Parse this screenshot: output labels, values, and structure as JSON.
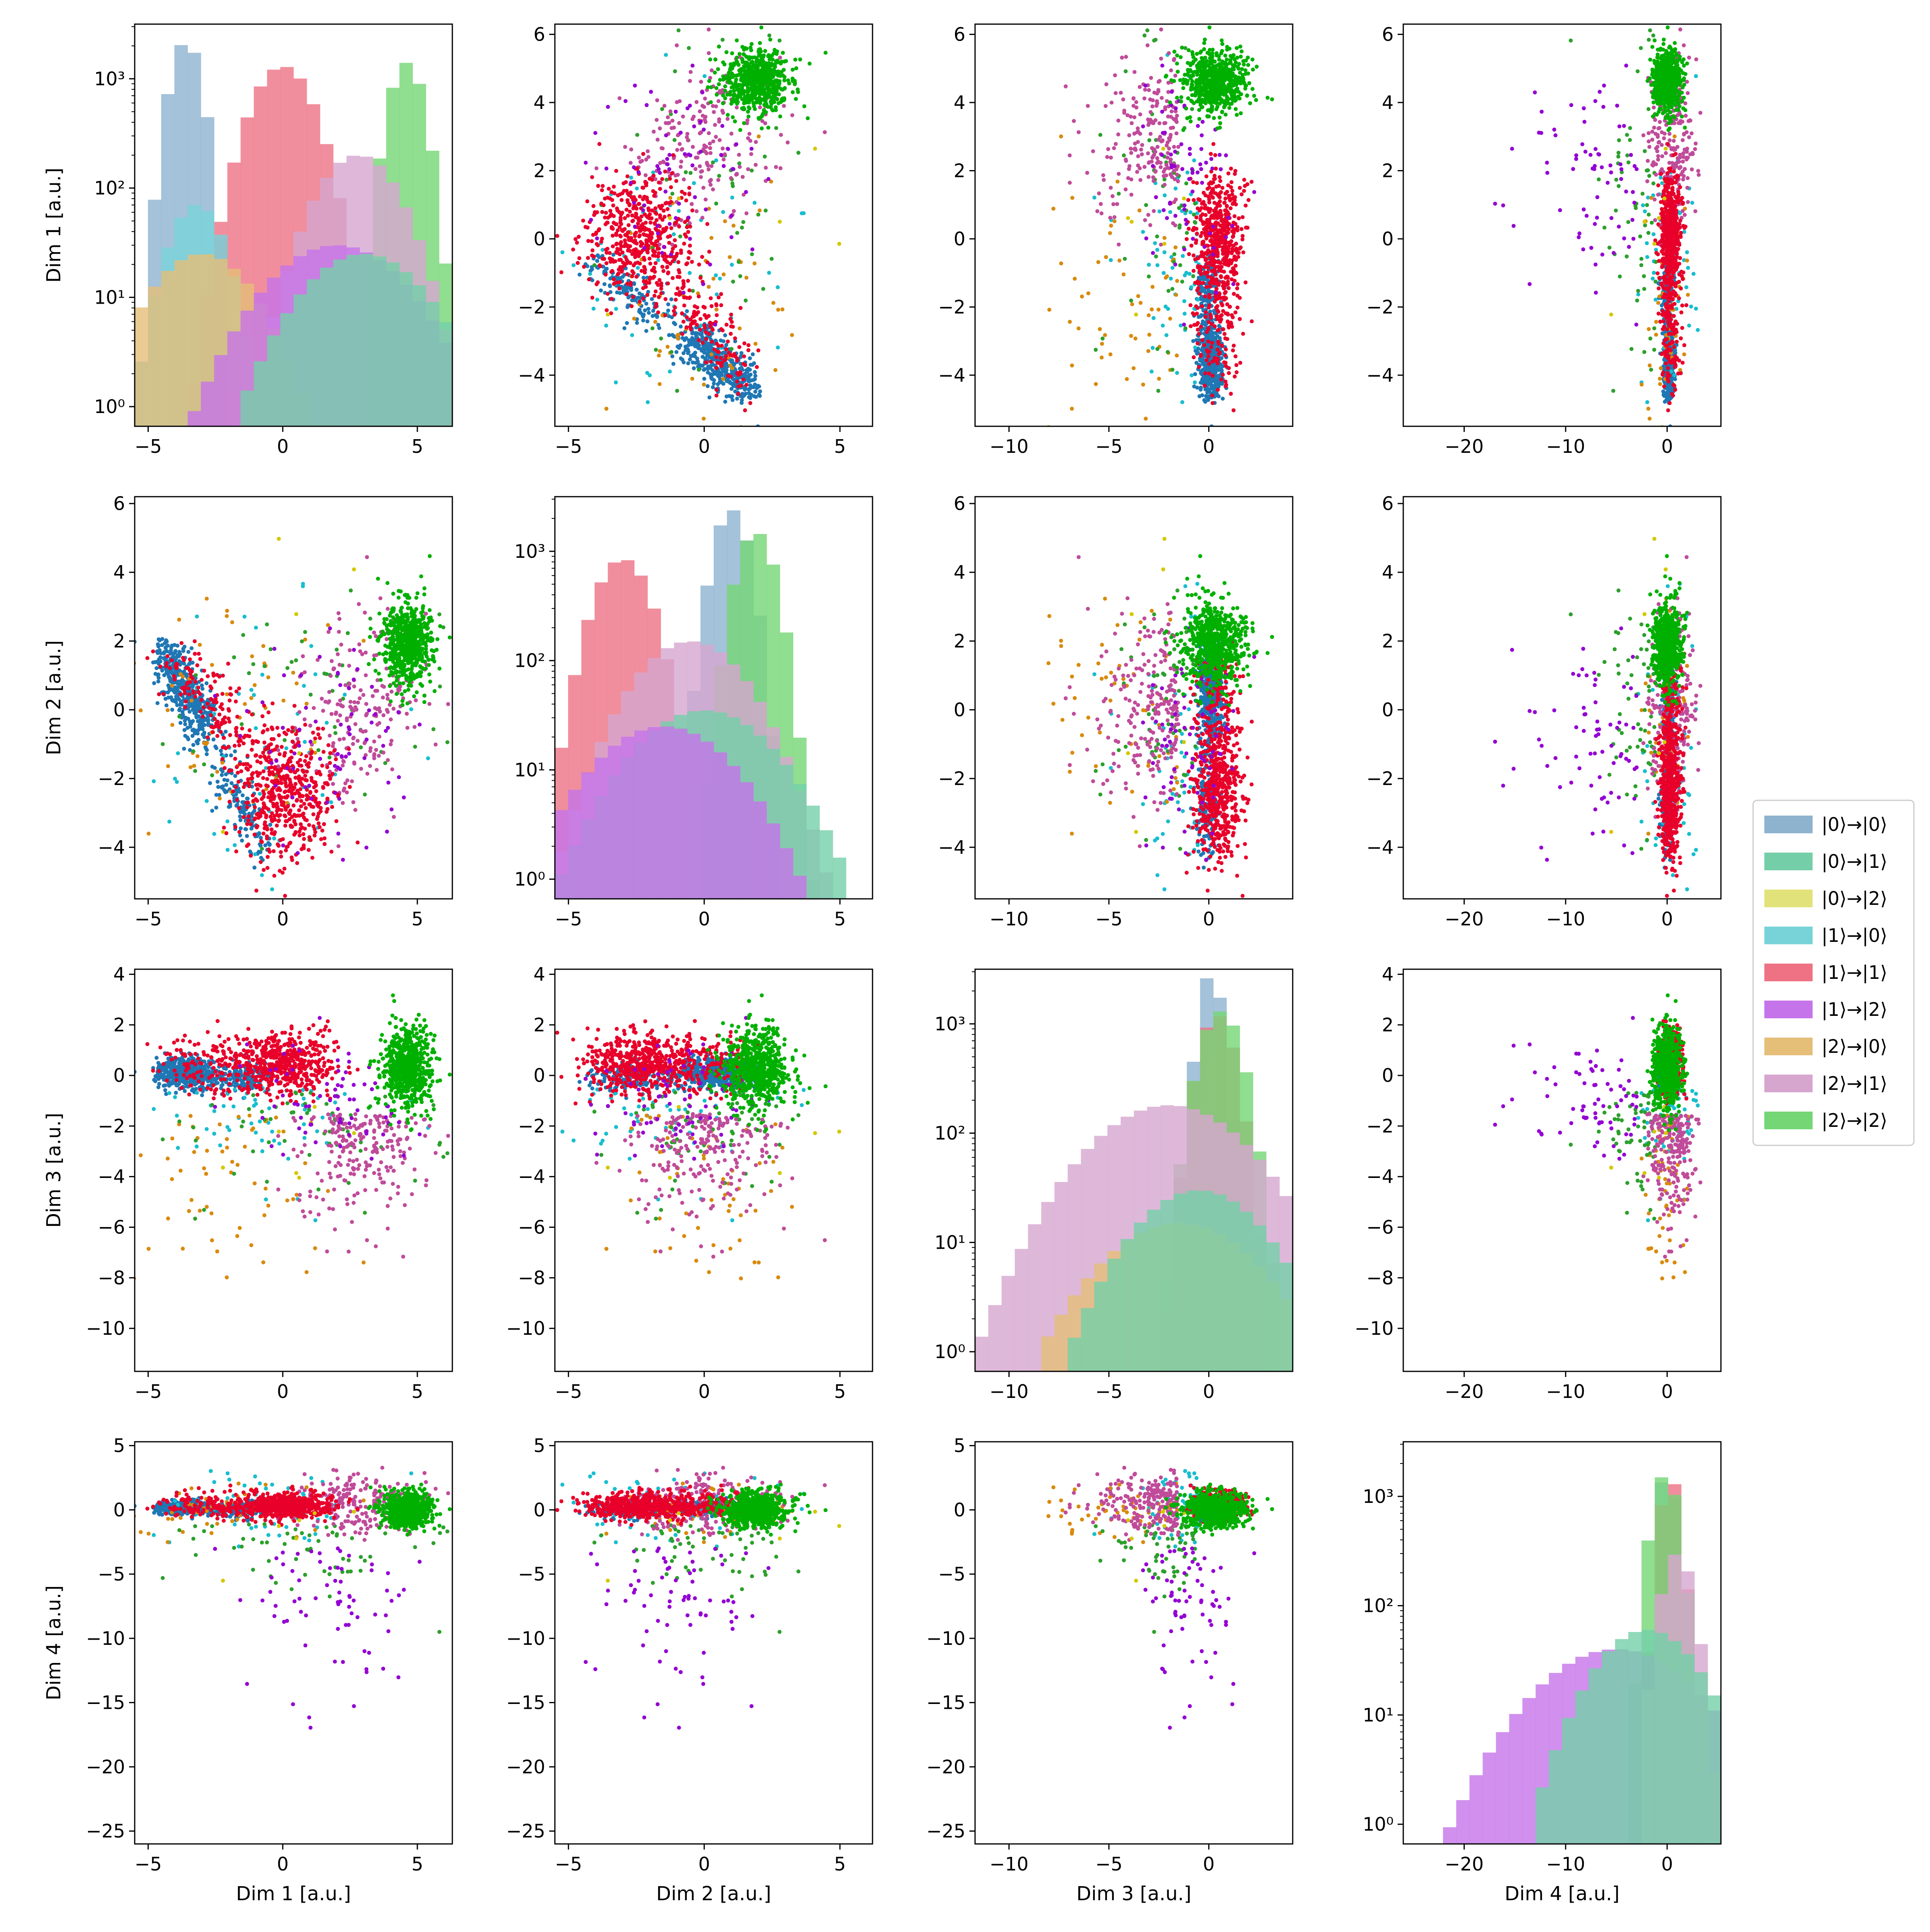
{
  "chart_data": {
    "type": "scatter-matrix",
    "dims": [
      "Dim 1 [a.u.]",
      "Dim 2 [a.u.]",
      "Dim 3 [a.u.]",
      "Dim 4 [a.u.]"
    ],
    "legend_placement": "center-right",
    "categories": [
      {
        "name": "|0⟩→|0⟩",
        "hist_color": "#8db3cf",
        "point_color": "#1f77b4"
      },
      {
        "name": "|0⟩→|1⟩",
        "hist_color": "#74cfa9",
        "point_color": "#2ca02c"
      },
      {
        "name": "|0⟩→|2⟩",
        "hist_color": "#e2e27a",
        "point_color": "#d4c800"
      },
      {
        "name": "|1⟩→|0⟩",
        "hist_color": "#78d3d9",
        "point_color": "#17becf"
      },
      {
        "name": "|1⟩→|1⟩",
        "hist_color": "#ee7284",
        "point_color": "#e8002a"
      },
      {
        "name": "|1⟩→|2⟩",
        "hist_color": "#c674ea",
        "point_color": "#9400d3"
      },
      {
        "name": "|2⟩→|0⟩",
        "hist_color": "#e5be78",
        "point_color": "#d98a0d"
      },
      {
        "name": "|2⟩→|1⟩",
        "hist_color": "#d6a6cf",
        "point_color": "#c04b9a"
      },
      {
        "name": "|2⟩→|2⟩",
        "hist_color": "#74d674",
        "point_color": "#00b000"
      }
    ],
    "axes": {
      "Dim 1": {
        "range": [
          -5.5,
          6.3
        ],
        "ticks": [
          -5,
          0,
          5
        ]
      },
      "Dim 2": {
        "range": [
          -5.5,
          6.2
        ],
        "ticks": [
          -5,
          0,
          5
        ]
      },
      "Dim 3": {
        "range": [
          -11.7,
          4.2
        ],
        "ticks": [
          -10,
          -5,
          0
        ],
        "y_ticks": [
          -10,
          -8,
          -6,
          -4,
          -2,
          0,
          2,
          4
        ]
      },
      "Dim 4": {
        "range": [
          -26,
          5.3
        ],
        "ticks": [
          -20,
          -10,
          0
        ],
        "y_ticks": [
          -25,
          -20,
          -15,
          -10,
          -5,
          0,
          5
        ]
      }
    },
    "row_y_axes": {
      "Dim 1": {
        "range": [
          -5.5,
          6.3
        ],
        "ticks": [
          -4,
          -2,
          0,
          2,
          4,
          6
        ]
      },
      "Dim 2": {
        "range": [
          -5.5,
          6.2
        ],
        "ticks": [
          -4,
          -2,
          0,
          2,
          4,
          6
        ]
      },
      "Dim 3": {
        "range": [
          -11.7,
          4.2
        ],
        "ticks": [
          -10,
          -8,
          -6,
          -4,
          -2,
          0,
          2,
          4
        ]
      },
      "Dim 4": {
        "range": [
          -26,
          5.3
        ],
        "ticks": [
          -25,
          -20,
          -15,
          -10,
          -5,
          0,
          5
        ]
      }
    },
    "histogram_y": {
      "scale": "log",
      "ticks": [
        "10⁰",
        "10¹",
        "10²",
        "10³"
      ]
    },
    "cluster_centers": {
      "|0⟩→|0⟩": [
        -3.8,
        0.8,
        0.2,
        0.1
      ],
      "|1⟩→|1⟩": [
        0.2,
        -3.0,
        0.6,
        0.3
      ],
      "|2⟩→|2⟩": [
        4.6,
        1.8,
        0.3,
        0.0
      ]
    },
    "histograms": [
      {
        "dim": "Dim 1",
        "peaks": [
          {
            "series": "|0⟩→|0⟩",
            "center": -3.6,
            "width": 0.45,
            "peak": 2200
          },
          {
            "series": "|1⟩→|1⟩",
            "center": 0.0,
            "width": 0.9,
            "peak": 1300
          },
          {
            "series": "|2⟩→|2⟩",
            "center": 4.6,
            "width": 0.5,
            "peak": 1400
          },
          {
            "series": "|2⟩→|1⟩",
            "center": 2.8,
            "width": 1.2,
            "peak": 200
          },
          {
            "series": "|1⟩→|0⟩",
            "center": -3.2,
            "width": 0.8,
            "peak": 70
          },
          {
            "series": "|2⟩→|0⟩",
            "center": -3.0,
            "width": 1.5,
            "peak": 25
          },
          {
            "series": "|1⟩→|2⟩",
            "center": 2.0,
            "width": 2.0,
            "peak": 30
          },
          {
            "series": "|0⟩→|1⟩",
            "center": 3.0,
            "width": 1.8,
            "peak": 25
          }
        ]
      },
      {
        "dim": "Dim 2",
        "peaks": [
          {
            "series": "|1⟩→|1⟩",
            "center": -3.0,
            "width": 0.8,
            "peak": 850
          },
          {
            "series": "|0⟩→|0⟩",
            "center": 1.0,
            "width": 0.5,
            "peak": 2400
          },
          {
            "series": "|2⟩→|2⟩",
            "center": 1.9,
            "width": 0.55,
            "peak": 1500
          },
          {
            "series": "|2⟩→|1⟩",
            "center": -0.5,
            "width": 1.6,
            "peak": 150
          },
          {
            "series": "|0⟩→|1⟩",
            "center": 0.0,
            "width": 2.0,
            "peak": 35
          },
          {
            "series": "|1⟩→|2⟩",
            "center": -1.5,
            "width": 2.0,
            "peak": 25
          }
        ]
      },
      {
        "dim": "Dim 3",
        "peaks": [
          {
            "series": "|0⟩→|0⟩",
            "center": 0.1,
            "width": 0.45,
            "peak": 2900
          },
          {
            "series": "|1⟩→|1⟩",
            "center": 0.4,
            "width": 0.7,
            "peak": 1200
          },
          {
            "series": "|2⟩→|2⟩",
            "center": 0.6,
            "width": 0.8,
            "peak": 1300
          },
          {
            "series": "|2⟩→|1⟩",
            "center": -2.0,
            "width": 3.0,
            "peak": 180
          },
          {
            "series": "|2⟩→|0⟩",
            "center": -1.5,
            "width": 3.0,
            "peak": 15
          },
          {
            "series": "|0⟩→|1⟩",
            "center": -0.5,
            "width": 2.5,
            "peak": 30
          }
        ]
      },
      {
        "dim": "Dim 4",
        "peaks": [
          {
            "series": "|0⟩→|0⟩",
            "center": 0.0,
            "width": 0.6,
            "peak": 2100
          },
          {
            "series": "|1⟩→|1⟩",
            "center": 0.3,
            "width": 0.8,
            "peak": 1500
          },
          {
            "series": "|2⟩→|2⟩",
            "center": -0.2,
            "width": 1.0,
            "peak": 1600
          },
          {
            "series": "|1⟩→|2⟩",
            "center": -5.0,
            "width": 6.0,
            "peak": 40
          },
          {
            "series": "|2⟩→|1⟩",
            "center": 1.0,
            "width": 1.2,
            "peak": 300
          },
          {
            "series": "|0⟩→|1⟩",
            "center": -2.0,
            "width": 4.0,
            "peak": 60
          }
        ]
      }
    ]
  }
}
